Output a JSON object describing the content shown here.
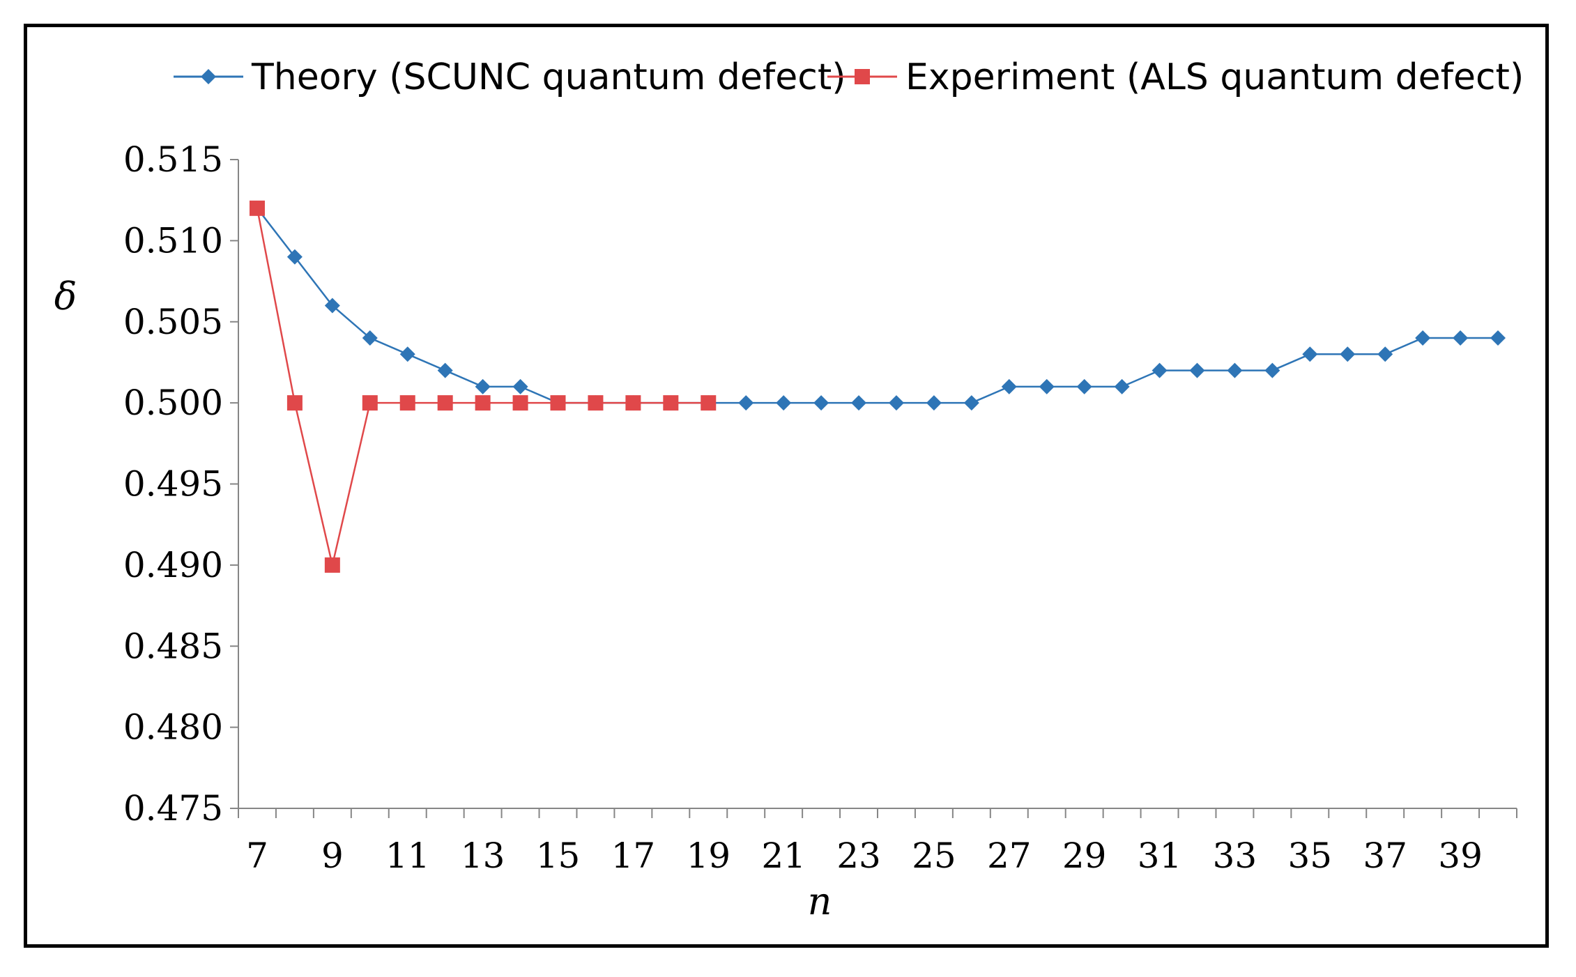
{
  "chart_data": {
    "type": "line",
    "title": "",
    "xlabel": "n",
    "ylabel": "δ",
    "ylim": [
      0.475,
      0.515
    ],
    "yticks": [
      0.515,
      0.51,
      0.505,
      0.5,
      0.495,
      0.49,
      0.485,
      0.48,
      0.475
    ],
    "ytick_labels": [
      "0.515",
      "0.510",
      "0.505",
      "0.500",
      "0.495",
      "0.490",
      "0.485",
      "0.480",
      "0.475"
    ],
    "xlim": [
      6.5,
      40.5
    ],
    "xticks": [
      7,
      9,
      11,
      13,
      15,
      17,
      19,
      21,
      23,
      25,
      27,
      29,
      31,
      33,
      35,
      37,
      39
    ],
    "xtick_labels": [
      "7",
      "9",
      "11",
      "13",
      "15",
      "17",
      "19",
      "21",
      "23",
      "25",
      "27",
      "29",
      "31",
      "33",
      "35",
      "37",
      "39"
    ],
    "legend_position": "top",
    "series": [
      {
        "name": "Theory (SCUNC quantum defect)",
        "color": "#2E75B6",
        "marker": "diamond",
        "x": [
          7,
          8,
          9,
          10,
          11,
          12,
          13,
          14,
          15,
          16,
          17,
          18,
          19,
          20,
          21,
          22,
          23,
          24,
          25,
          26,
          27,
          28,
          29,
          30,
          31,
          32,
          33,
          34,
          35,
          36,
          37,
          38,
          39,
          40
        ],
        "y": [
          0.512,
          0.509,
          0.506,
          0.504,
          0.503,
          0.502,
          0.501,
          0.501,
          0.5,
          0.5,
          0.5,
          0.5,
          0.5,
          0.5,
          0.5,
          0.5,
          0.5,
          0.5,
          0.5,
          0.5,
          0.501,
          0.501,
          0.501,
          0.501,
          0.502,
          0.502,
          0.502,
          0.502,
          0.503,
          0.503,
          0.503,
          0.504,
          0.504,
          0.504
        ]
      },
      {
        "name": "Experiment (ALS quantum defect)",
        "color": "#E0484A",
        "marker": "square",
        "x": [
          7,
          8,
          9,
          10,
          11,
          12,
          13,
          14,
          15,
          16,
          17,
          18,
          19
        ],
        "y": [
          0.512,
          0.5,
          0.49,
          0.5,
          0.5,
          0.5,
          0.5,
          0.5,
          0.5,
          0.5,
          0.5,
          0.5,
          0.5
        ]
      }
    ]
  }
}
